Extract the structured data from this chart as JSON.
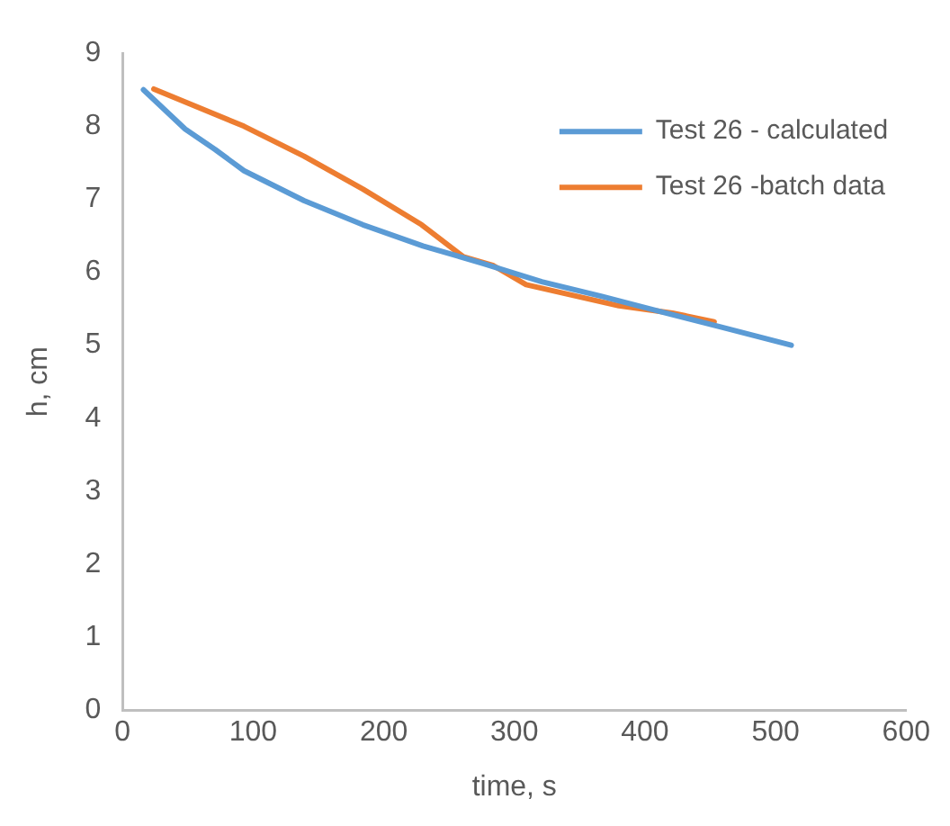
{
  "chart_data": {
    "type": "line",
    "xlabel": "time, s",
    "ylabel": "h, cm",
    "xlim": [
      0,
      600
    ],
    "xticks": [
      0,
      100,
      200,
      300,
      400,
      500,
      600
    ],
    "ylim": [
      0,
      9
    ],
    "yticks": [
      0,
      1,
      2,
      3,
      4,
      5,
      6,
      7,
      8,
      9
    ],
    "grid": false,
    "legend": "top right",
    "marker": "none",
    "series": [
      {
        "name": "Test 26 - calculated",
        "color": "#5b9bd5",
        "x": [
          16,
          48,
          71,
          93,
          139,
          184,
          230,
          276,
          321,
          367,
          412,
          458,
          512
        ],
        "values": [
          8.5,
          7.96,
          7.68,
          7.39,
          6.98,
          6.65,
          6.36,
          6.12,
          5.87,
          5.67,
          5.46,
          5.25,
          5.0
        ]
      },
      {
        "name": "Test 26 -batch data",
        "color": "#ed7d31",
        "x": [
          24,
          93,
          139,
          184,
          229,
          261,
          284,
          309,
          380,
          421,
          453
        ],
        "values": [
          8.51,
          8.0,
          7.59,
          7.14,
          6.65,
          6.21,
          6.09,
          5.83,
          5.54,
          5.44,
          5.32
        ]
      }
    ]
  }
}
